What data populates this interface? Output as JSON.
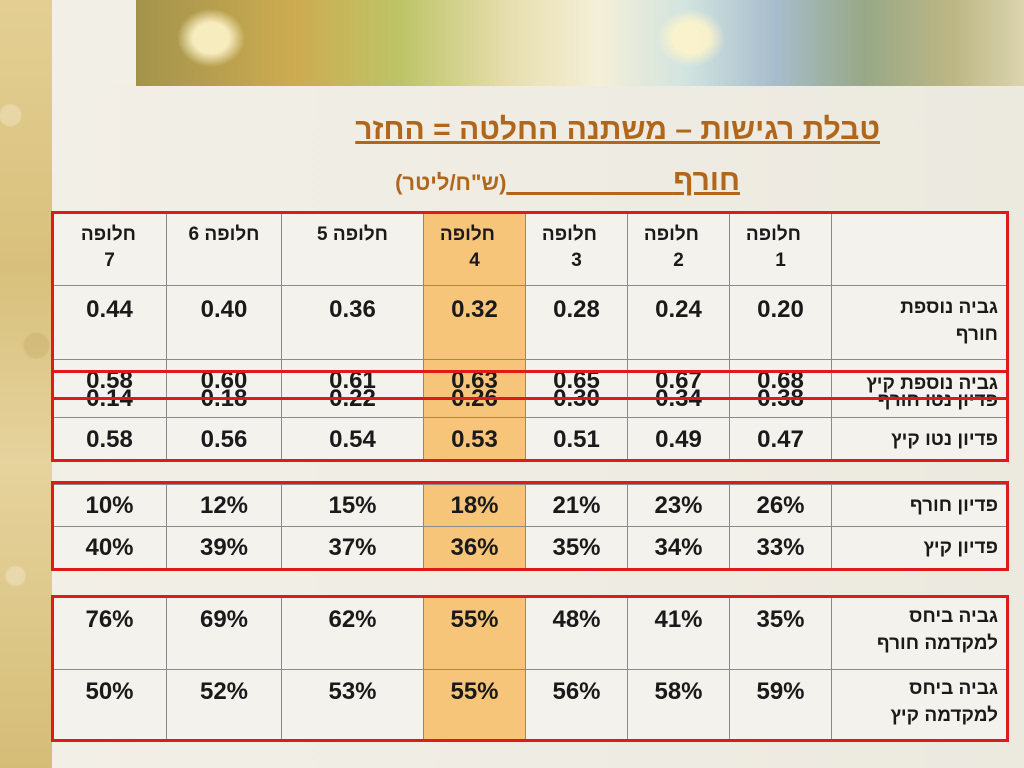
{
  "title": "טבלת רגישות – משתנה החלטה = החזר",
  "subtitle_word": "חורף",
  "subtitle_unit": "(ש\"ח/ליטר)",
  "table1": {
    "headers": [
      "",
      "חלופה 1",
      "חלופה 2",
      "חלופה 3",
      "חלופה 4",
      "חלופה 5",
      "חלופה 6",
      "חלופה 7"
    ],
    "rows": [
      {
        "label": "גביה נוספת חורף",
        "values": [
          "0.20",
          "0.24",
          "0.28",
          "0.32",
          "0.36",
          "0.40",
          "0.44"
        ]
      },
      {
        "label": "גביה נוספת קיץ",
        "values": [
          "0.68",
          "0.67",
          "0.65",
          "0.63",
          "0.61",
          "0.60",
          "0.58"
        ]
      },
      {
        "label": "פדיון נטו חורף",
        "values": [
          "0.38",
          "0.34",
          "0.30",
          "0.26",
          "0.22",
          "0.18",
          "0.14"
        ]
      },
      {
        "label": "פדיון נטו קיץ",
        "values": [
          "0.47",
          "0.49",
          "0.51",
          "0.53",
          "0.54",
          "0.56",
          "0.58"
        ]
      }
    ]
  },
  "table2": {
    "rows": [
      {
        "label": "פדיון חורף",
        "values": [
          "26%",
          "23%",
          "21%",
          "18%",
          "15%",
          "12%",
          "10%"
        ]
      },
      {
        "label": "פדיון קיץ",
        "values": [
          "33%",
          "34%",
          "35%",
          "36%",
          "37%",
          "39%",
          "40%"
        ]
      }
    ]
  },
  "table3": {
    "rows": [
      {
        "label": "גביה ביחס למקדמה חורף",
        "values": [
          "35%",
          "41%",
          "48%",
          "55%",
          "62%",
          "69%",
          "76%"
        ]
      },
      {
        "label": "גביה ביחס למקדמה קיץ",
        "values": [
          "59%",
          "58%",
          "56%",
          "55%",
          "53%",
          "52%",
          "50%"
        ]
      }
    ]
  },
  "colors": {
    "accent_title": "#b0661b",
    "highlight": "#f7c57a",
    "frame": "#e01a1a"
  }
}
